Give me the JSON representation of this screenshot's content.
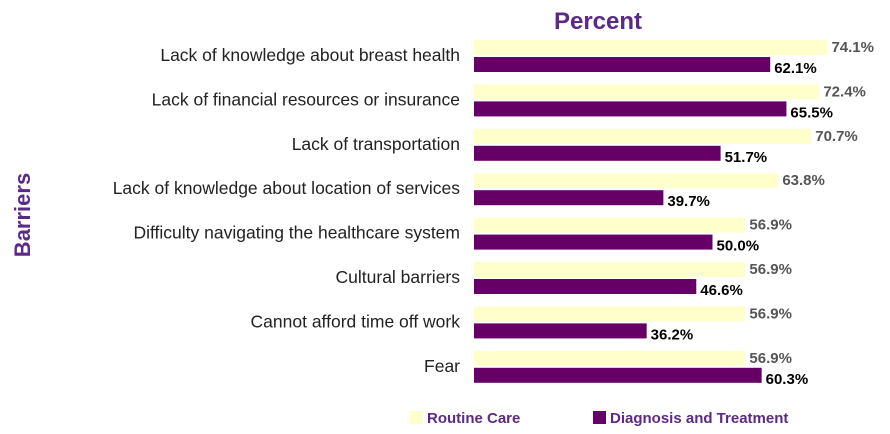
{
  "chart_data": {
    "type": "bar",
    "orientation": "horizontal",
    "title": "Percent",
    "ylabel": "Barriers",
    "xlim": [
      0,
      100
    ],
    "categories": [
      "Lack of knowledge about breast health",
      "Lack of financial resources or insurance",
      "Lack of transportation",
      "Lack of knowledge about location of services",
      "Difficulty navigating the healthcare system",
      "Cultural barriers",
      "Cannot afford time off work",
      "Fear"
    ],
    "series": [
      {
        "name": "Routine Care",
        "color": "#ffffcc",
        "values": [
          74.1,
          72.4,
          70.7,
          63.8,
          56.9,
          56.9,
          56.9,
          56.9
        ],
        "labels": [
          "74.1%",
          "72.4%",
          "70.7%",
          "63.8%",
          "56.9%",
          "56.9%",
          "56.9%",
          "56.9%"
        ]
      },
      {
        "name": "Diagnosis and Treatment",
        "color": "#660066",
        "values": [
          62.1,
          65.5,
          51.7,
          39.7,
          50.0,
          46.6,
          36.2,
          60.3
        ],
        "labels": [
          "62.1%",
          "65.5%",
          "51.7%",
          "39.7%",
          "50.0%",
          "46.6%",
          "36.2%",
          "60.3%"
        ]
      }
    ],
    "legend": "bottom",
    "grid": false,
    "colors": {
      "title": "#5b2a86",
      "label_routine": "#555555",
      "label_diagnosis": "#000000"
    }
  }
}
